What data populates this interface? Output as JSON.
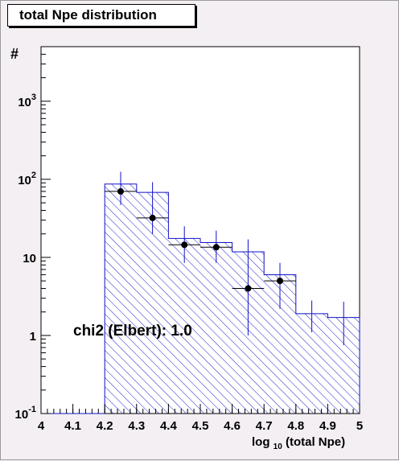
{
  "chart_data": {
    "type": "bar",
    "title": "total Npe distribution",
    "ylabel": "#",
    "xlabel_main": "log",
    "xlabel_sub": "10",
    "xlabel_rest": "(total Npe)",
    "xlim": [
      4.0,
      5.0
    ],
    "ylim": [
      0.1,
      5000
    ],
    "yscale": "log",
    "x_ticks": [
      "4",
      "4.1",
      "4.2",
      "4.3",
      "4.4",
      "4.5",
      "4.6",
      "4.7",
      "4.8",
      "4.9",
      "5"
    ],
    "x_tick_values": [
      4.0,
      4.1,
      4.2,
      4.3,
      4.4,
      4.5,
      4.6,
      4.7,
      4.8,
      4.9,
      5.0
    ],
    "y_ticks": [
      {
        "value": 0.1,
        "base": "10",
        "exp": "-1"
      },
      {
        "value": 1,
        "base": "1",
        "exp": ""
      },
      {
        "value": 10,
        "base": "10",
        "exp": ""
      },
      {
        "value": 100,
        "base": "10",
        "exp": "2"
      },
      {
        "value": 1000,
        "base": "10",
        "exp": "3"
      }
    ],
    "histogram": {
      "name": "",
      "color": "#1010c8",
      "bin_edges": [
        4.0,
        4.1,
        4.2,
        4.3,
        4.4,
        4.5,
        4.6,
        4.7,
        4.8,
        4.9,
        5.0
      ],
      "values": [
        0.1,
        0.1,
        87,
        68,
        17.5,
        15.5,
        11.8,
        6.0,
        1.9,
        1.7
      ],
      "error_high": [
        null,
        null,
        null,
        null,
        null,
        null,
        null,
        null,
        2.8,
        2.7
      ],
      "error_low": [
        null,
        null,
        null,
        null,
        null,
        null,
        null,
        null,
        1.1,
        0.75
      ]
    },
    "data_points": {
      "name": "",
      "color": "#000000",
      "x": [
        4.25,
        4.35,
        4.45,
        4.55,
        4.65,
        4.75
      ],
      "y": [
        70,
        32,
        14.5,
        13.5,
        4.0,
        5.0
      ],
      "y_high": [
        125,
        92,
        25,
        22,
        17,
        8.5
      ],
      "y_low": [
        47,
        20,
        8.5,
        8.5,
        1.0,
        2.2
      ]
    },
    "annotation": "chi2 (Elbert): 1.0"
  }
}
